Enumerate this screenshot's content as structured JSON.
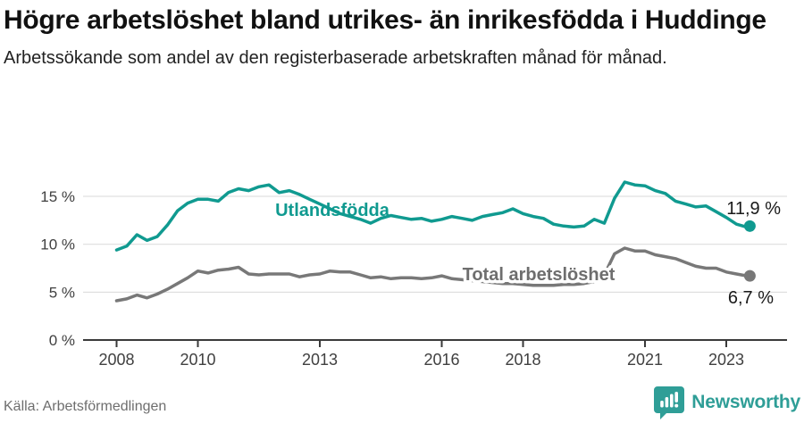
{
  "header": {
    "title": "Högre arbetslöshet bland utrikes- än inrikesfödda i Huddinge",
    "subtitle": "Arbetssökande som andel av den registerbaserade arbetskraften månad för månad."
  },
  "footer": {
    "source": "Källa: Arbetsförmedlingen",
    "brand": "Newsworthy"
  },
  "colors": {
    "accent_teal": "#109a90",
    "line_gray": "#787878",
    "gray_label": "#6e6e6e",
    "grid": "#d9d9d9",
    "axis": "#3a3a3a",
    "tick_text": "#404040",
    "end_label_text": "#1a1a1a",
    "brand_teal": "#2f9e97"
  },
  "chart_data": {
    "type": "line",
    "unit": "%",
    "x_ticks": [
      2008,
      2010,
      2013,
      2016,
      2018,
      2021,
      2023
    ],
    "y_ticks": [
      0,
      5,
      10,
      15
    ],
    "y_tick_labels": [
      "0 %",
      "5 %",
      "10 %",
      "15 %"
    ],
    "ylim": [
      0,
      17.5
    ],
    "x_range": [
      2008.0,
      2023.58
    ],
    "grid": "horizontal-only",
    "legend_position": "inline-labels",
    "x_years": [
      2008.0,
      2008.25,
      2008.5,
      2008.75,
      2009.0,
      2009.25,
      2009.5,
      2009.75,
      2010.0,
      2010.25,
      2010.5,
      2010.75,
      2011.0,
      2011.25,
      2011.5,
      2011.75,
      2012.0,
      2012.25,
      2012.5,
      2012.75,
      2013.0,
      2013.25,
      2013.5,
      2013.75,
      2014.0,
      2014.25,
      2014.5,
      2014.75,
      2015.0,
      2015.25,
      2015.5,
      2015.75,
      2016.0,
      2016.25,
      2016.5,
      2016.75,
      2017.0,
      2017.25,
      2017.5,
      2017.75,
      2018.0,
      2018.25,
      2018.5,
      2018.75,
      2019.0,
      2019.25,
      2019.5,
      2019.75,
      2020.0,
      2020.25,
      2020.5,
      2020.75,
      2021.0,
      2021.25,
      2021.5,
      2021.75,
      2022.0,
      2022.25,
      2022.5,
      2022.75,
      2023.0,
      2023.25,
      2023.5,
      2023.58
    ],
    "series": [
      {
        "name": "Utlandsfödda",
        "color": "#109a90",
        "end_label": "11,9 %",
        "end_value": 11.9,
        "values": [
          9.4,
          9.8,
          11.0,
          10.4,
          10.8,
          12.0,
          13.5,
          14.3,
          14.7,
          14.7,
          14.5,
          15.4,
          15.8,
          15.6,
          16.0,
          16.2,
          15.4,
          15.6,
          15.2,
          14.7,
          14.2,
          13.7,
          13.2,
          12.9,
          12.6,
          12.2,
          12.7,
          13.0,
          12.8,
          12.6,
          12.7,
          12.4,
          12.6,
          12.9,
          12.7,
          12.5,
          12.9,
          13.1,
          13.3,
          13.7,
          13.2,
          12.9,
          12.7,
          12.1,
          11.9,
          11.8,
          11.9,
          12.6,
          12.2,
          14.8,
          16.5,
          16.2,
          16.1,
          15.6,
          15.3,
          14.5,
          14.2,
          13.9,
          14.0,
          13.4,
          12.8,
          12.1,
          11.8,
          11.9
        ]
      },
      {
        "name": "Total arbetslöshet",
        "color": "#787878",
        "end_label": "6,7 %",
        "end_value": 6.7,
        "values": [
          4.1,
          4.3,
          4.7,
          4.4,
          4.8,
          5.3,
          5.9,
          6.5,
          7.2,
          7.0,
          7.3,
          7.4,
          7.6,
          6.9,
          6.8,
          6.9,
          6.9,
          6.9,
          6.6,
          6.8,
          6.9,
          7.2,
          7.1,
          7.1,
          6.8,
          6.5,
          6.6,
          6.4,
          6.5,
          6.5,
          6.4,
          6.5,
          6.7,
          6.4,
          6.3,
          6.2,
          6.1,
          6.0,
          5.9,
          5.9,
          5.8,
          5.7,
          5.7,
          5.7,
          5.8,
          5.8,
          5.9,
          6.1,
          6.8,
          9.0,
          9.6,
          9.3,
          9.3,
          8.9,
          8.7,
          8.5,
          8.1,
          7.7,
          7.5,
          7.5,
          7.1,
          6.9,
          6.7,
          6.7
        ]
      }
    ]
  }
}
